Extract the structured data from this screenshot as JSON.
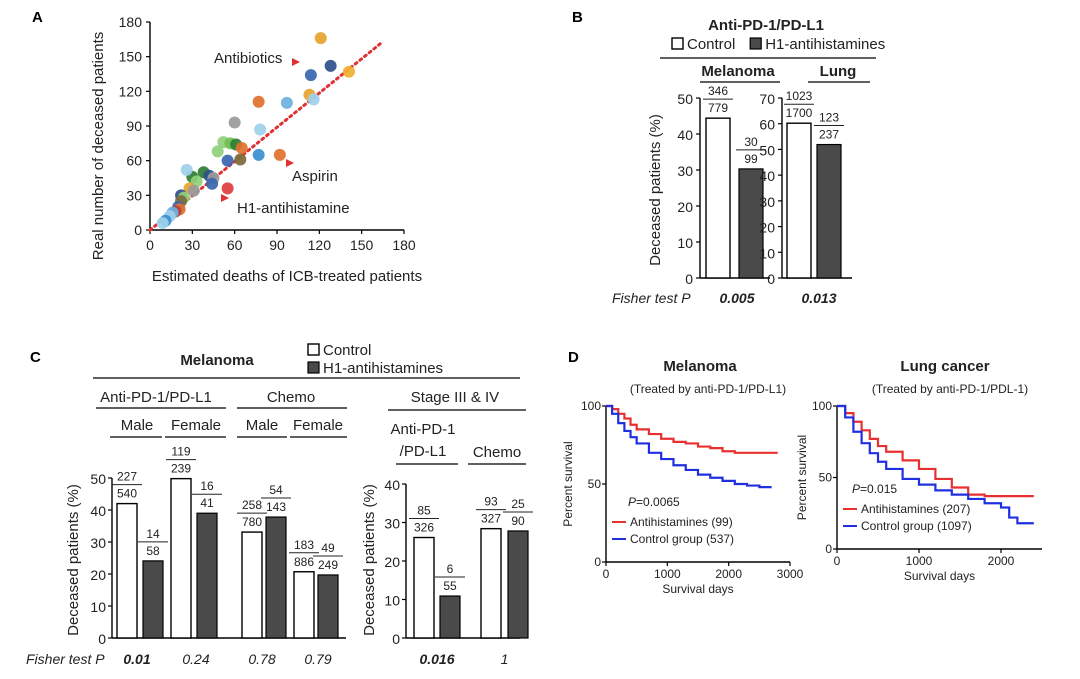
{
  "panels": {
    "a": "A",
    "b": "B",
    "c": "C",
    "d": "D"
  },
  "chart_data": [
    {
      "id": "A",
      "type": "scatter",
      "xlabel": "Estimated deaths of ICB-treated patients",
      "ylabel": "Real number of deceased patients",
      "xlim": [
        0,
        180
      ],
      "ylim": [
        0,
        180
      ],
      "xticks": [
        "0",
        "30",
        "60",
        "90",
        "120",
        "150",
        "180"
      ],
      "yticks": [
        "0",
        "30",
        "60",
        "90",
        "120",
        "150",
        "180"
      ],
      "reference_line": {
        "from": [
          0,
          0
        ],
        "to": [
          165,
          163
        ],
        "color": "#e03030",
        "style": "dotted"
      },
      "annotations": [
        {
          "text": "Antibiotics",
          "color": "#222222",
          "arrow_to": [
            112,
            138
          ]
        },
        {
          "text": "Aspirin",
          "color": "#222222",
          "arrow_to": [
            91,
            58
          ]
        },
        {
          "text": "H1-antihistamine",
          "color": "#e03c3c",
          "arrow_to": [
            57,
            31
          ]
        }
      ],
      "points": [
        {
          "x": 121,
          "y": 166,
          "color": "#e6a22c"
        },
        {
          "x": 128,
          "y": 142,
          "color": "#2f4f8c"
        },
        {
          "x": 114,
          "y": 134,
          "color": "#3a66b0"
        },
        {
          "x": 141,
          "y": 137,
          "color": "#f0b030"
        },
        {
          "x": 113,
          "y": 117,
          "color": "#e6a22c"
        },
        {
          "x": 116,
          "y": 113,
          "color": "#9ed0ec"
        },
        {
          "x": 97,
          "y": 110,
          "color": "#6fb0e0"
        },
        {
          "x": 77,
          "y": 111,
          "color": "#e0702c"
        },
        {
          "x": 60,
          "y": 93,
          "color": "#9a9a9a"
        },
        {
          "x": 78,
          "y": 87,
          "color": "#9ed0ec"
        },
        {
          "x": 52,
          "y": 76,
          "color": "#8fd07a"
        },
        {
          "x": 57,
          "y": 75,
          "color": "#6fbf50"
        },
        {
          "x": 61,
          "y": 74,
          "color": "#2e7d32"
        },
        {
          "x": 48,
          "y": 68,
          "color": "#8fd07a"
        },
        {
          "x": 65,
          "y": 71,
          "color": "#e0702c"
        },
        {
          "x": 92,
          "y": 65,
          "color": "#e0702c"
        },
        {
          "x": 77,
          "y": 65,
          "color": "#3a8fd0"
        },
        {
          "x": 64,
          "y": 61,
          "color": "#7a6a3a"
        },
        {
          "x": 55,
          "y": 60,
          "color": "#3a66b0"
        },
        {
          "x": 38,
          "y": 50,
          "color": "#2e7d32"
        },
        {
          "x": 42,
          "y": 47,
          "color": "#2f4f8c"
        },
        {
          "x": 45,
          "y": 45,
          "color": "#9a9a9a"
        },
        {
          "x": 30,
          "y": 46,
          "color": "#2e7d32"
        },
        {
          "x": 26,
          "y": 52,
          "color": "#9ed0ec"
        },
        {
          "x": 33,
          "y": 42,
          "color": "#8fd07a"
        },
        {
          "x": 44,
          "y": 40,
          "color": "#3a66b0"
        },
        {
          "x": 28,
          "y": 36,
          "color": "#e6a22c"
        },
        {
          "x": 31,
          "y": 34,
          "color": "#9a9a9a"
        },
        {
          "x": 22,
          "y": 30,
          "color": "#2f4f8c"
        },
        {
          "x": 24,
          "y": 28,
          "color": "#8fd07a"
        },
        {
          "x": 22,
          "y": 25,
          "color": "#7a6a3a"
        },
        {
          "x": 55,
          "y": 36,
          "color": "#e03c3c"
        },
        {
          "x": 20,
          "y": 20,
          "color": "#3a66b0"
        },
        {
          "x": 21,
          "y": 18,
          "color": "#e0702c"
        },
        {
          "x": 18,
          "y": 16,
          "color": "#b04040"
        },
        {
          "x": 16,
          "y": 15,
          "color": "#6fb0e0"
        },
        {
          "x": 14,
          "y": 12,
          "color": "#9ed0ec"
        },
        {
          "x": 11,
          "y": 8,
          "color": "#3a8fd0"
        },
        {
          "x": 9,
          "y": 6,
          "color": "#9ed0ec"
        }
      ]
    },
    {
      "id": "B",
      "type": "bar",
      "title": "Anti-PD-1/PD-L1",
      "legend": [
        "Control",
        "H1-antihistamines"
      ],
      "ylabel": "Deceased patients (%)",
      "pvalue_label": "Fisher test P",
      "groups": [
        {
          "name": "Melanoma",
          "ylim": [
            0,
            50
          ],
          "yticks": [
            "0",
            "10",
            "20",
            "30",
            "40",
            "50"
          ],
          "bars": [
            {
              "series": "Control",
              "value": 44.4,
              "num": "346",
              "den": "779"
            },
            {
              "series": "H1-antihistamines",
              "value": 30.3,
              "num": "30",
              "den": "99"
            }
          ],
          "p": "0.005",
          "p_bold": true
        },
        {
          "name": "Lung",
          "ylim": [
            0,
            70
          ],
          "yticks": [
            "0",
            "10",
            "20",
            "30",
            "40",
            "50",
            "60",
            "70"
          ],
          "bars": [
            {
              "series": "Control",
              "value": 60.2,
              "num": "1023",
              "den": "1700"
            },
            {
              "series": "H1-antihistamines",
              "value": 51.9,
              "num": "123",
              "den": "237"
            }
          ],
          "p": "0.013",
          "p_bold": true
        }
      ]
    },
    {
      "id": "C",
      "type": "bar",
      "title": "Melanoma",
      "legend": [
        "Control",
        "H1-antihistamines"
      ],
      "ylabel": "Deceased patients (%)",
      "pvalue_label": "Fisher test P",
      "left": {
        "ylim": [
          0,
          50
        ],
        "yticks": [
          "0",
          "10",
          "20",
          "30",
          "40",
          "50"
        ],
        "treatments": [
          {
            "name": "Anti-PD-1/PD-L1",
            "subgroups": [
              {
                "name": "Male",
                "bars": [
                  {
                    "series": "Control",
                    "value": 42.0,
                    "num": "227",
                    "den": "540"
                  },
                  {
                    "series": "H1-antihistamines",
                    "value": 24.1,
                    "num": "14",
                    "den": "58"
                  }
                ],
                "p": "0.01",
                "p_bold": true
              },
              {
                "name": "Female",
                "bars": [
                  {
                    "series": "Control",
                    "value": 49.8,
                    "num": "119",
                    "den": "239"
                  },
                  {
                    "series": "H1-antihistamines",
                    "value": 39.0,
                    "num": "16",
                    "den": "41"
                  }
                ],
                "p": "0.24",
                "p_bold": false
              }
            ]
          },
          {
            "name": "Chemo",
            "subgroups": [
              {
                "name": "Male",
                "bars": [
                  {
                    "series": "Control",
                    "value": 33.1,
                    "num": "258",
                    "den": "780"
                  },
                  {
                    "series": "H1-antihistamines",
                    "value": 37.8,
                    "num": "54",
                    "den": "143"
                  }
                ],
                "p": "0.78",
                "p_bold": false
              },
              {
                "name": "Female",
                "bars": [
                  {
                    "series": "Control",
                    "value": 20.7,
                    "num": "183",
                    "den": "886"
                  },
                  {
                    "series": "H1-antihistamines",
                    "value": 19.7,
                    "num": "49",
                    "den": "249"
                  }
                ],
                "p": "0.79",
                "p_bold": false
              }
            ]
          }
        ]
      },
      "right": {
        "title": "Stage III & IV",
        "ylim": [
          0,
          40
        ],
        "yticks": [
          "0",
          "10",
          "20",
          "30",
          "40"
        ],
        "groups": [
          {
            "name_line1": "Anti-PD-1",
            "name_line2": "/PD-L1",
            "bars": [
              {
                "series": "Control",
                "value": 26.1,
                "num": "85",
                "den": "326"
              },
              {
                "series": "H1-antihistamines",
                "value": 10.9,
                "num": "6",
                "den": "55"
              }
            ],
            "p": "0.016",
            "p_bold": true
          },
          {
            "name_line1": "Chemo",
            "name_line2": "",
            "bars": [
              {
                "series": "Control",
                "value": 28.4,
                "num": "93",
                "den": "327"
              },
              {
                "series": "H1-antihistamines",
                "value": 27.8,
                "num": "25",
                "den": "90"
              }
            ],
            "p": "1",
            "p_bold": false
          }
        ]
      }
    },
    {
      "id": "D",
      "type": "line",
      "plots": [
        {
          "title": "Melanoma",
          "subtitle": "(Treated by anti-PD-1/PD-L1)",
          "ylabel": "Percent survival",
          "xlabel": "Survival days",
          "xlim": [
            0,
            3000
          ],
          "ylim": [
            0,
            100
          ],
          "xticks": [
            "0",
            "1000",
            "2000",
            "3000"
          ],
          "yticks": [
            "0",
            "50",
            "100"
          ],
          "pvalue": "=0.0065",
          "series": [
            {
              "name": "Antihistamines (99)",
              "color": "#e83030",
              "x": [
                0,
                100,
                200,
                300,
                400,
                500,
                700,
                900,
                1100,
                1300,
                1500,
                1700,
                1900,
                2100,
                2300,
                2500,
                2800
              ],
              "y": [
                100,
                98,
                95,
                92,
                88,
                85,
                82,
                79,
                77,
                76,
                74,
                73,
                71,
                70,
                70,
                70,
                70
              ]
            },
            {
              "name": "Control group (537)",
              "color": "#2030e0",
              "x": [
                0,
                100,
                200,
                300,
                400,
                500,
                700,
                900,
                1100,
                1300,
                1500,
                1700,
                1900,
                2100,
                2300,
                2500,
                2700
              ],
              "y": [
                100,
                95,
                89,
                84,
                80,
                76,
                70,
                66,
                62,
                59,
                56,
                54,
                52,
                50,
                49,
                48,
                48
              ]
            }
          ]
        },
        {
          "title": "Lung cancer",
          "subtitle": "(Treated by anti-PD-1/PDL-1)",
          "ylabel": "Percent survival",
          "xlabel": "Survival days",
          "xlim": [
            0,
            2500
          ],
          "ylim": [
            0,
            100
          ],
          "xticks": [
            "0",
            "1000",
            "2000"
          ],
          "yticks": [
            "0",
            "50",
            "100"
          ],
          "pvalue": "=0.015",
          "series": [
            {
              "name": "Antihistamines (207)",
              "color": "#e83030",
              "x": [
                0,
                100,
                200,
                300,
                400,
                500,
                600,
                800,
                1000,
                1200,
                1400,
                1600,
                1800,
                2000,
                2200,
                2400
              ],
              "y": [
                100,
                95,
                89,
                83,
                77,
                72,
                68,
                62,
                56,
                49,
                43,
                38,
                37,
                37,
                37,
                37
              ]
            },
            {
              "name": "Control group (1097)",
              "color": "#2030e0",
              "x": [
                0,
                100,
                200,
                300,
                400,
                500,
                600,
                800,
                1000,
                1200,
                1400,
                1600,
                1800,
                2000,
                2100,
                2200,
                2400
              ],
              "y": [
                100,
                92,
                82,
                74,
                67,
                61,
                56,
                49,
                45,
                41,
                38,
                35,
                32,
                29,
                22,
                18,
                18
              ]
            }
          ]
        }
      ]
    }
  ]
}
